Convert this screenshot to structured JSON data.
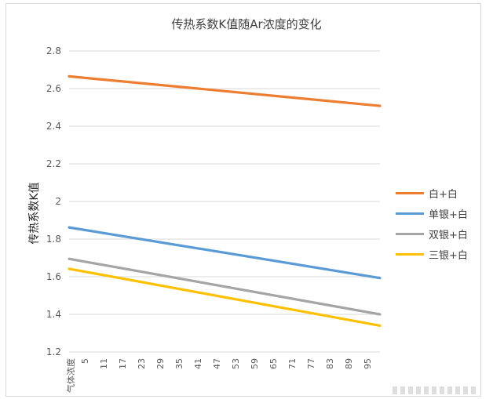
{
  "chart_data": {
    "type": "line",
    "title": "传热系数K值随Ar浓度的变化",
    "ylabel": "传热系数K值",
    "xlabel": "",
    "first_tick_label": "气体浓度",
    "ylim": [
      1.2,
      2.8
    ],
    "yticks": [
      "1.2",
      "1.4",
      "1.6",
      "1.8",
      "2",
      "2.2",
      "2.4",
      "2.6",
      "2.8"
    ],
    "xlim": [
      0,
      99
    ],
    "x_tick_values": [
      5,
      11,
      17,
      23,
      29,
      35,
      41,
      47,
      53,
      59,
      65,
      71,
      77,
      83,
      89,
      95
    ],
    "grid": true,
    "legend_position": "right",
    "series": [
      {
        "name": "白+白",
        "color": "#ED7D31",
        "x": [
          0,
          99
        ],
        "values": [
          2.665,
          2.508
        ]
      },
      {
        "name": "单银+白",
        "color": "#5B9BD5",
        "x": [
          0,
          99
        ],
        "values": [
          1.862,
          1.593
        ]
      },
      {
        "name": "双银+白",
        "color": "#A5A5A5",
        "x": [
          0,
          99
        ],
        "values": [
          1.695,
          1.4
        ]
      },
      {
        "name": "三银+白",
        "color": "#FFC000",
        "x": [
          0,
          99
        ],
        "values": [
          1.642,
          1.34
        ]
      }
    ]
  }
}
